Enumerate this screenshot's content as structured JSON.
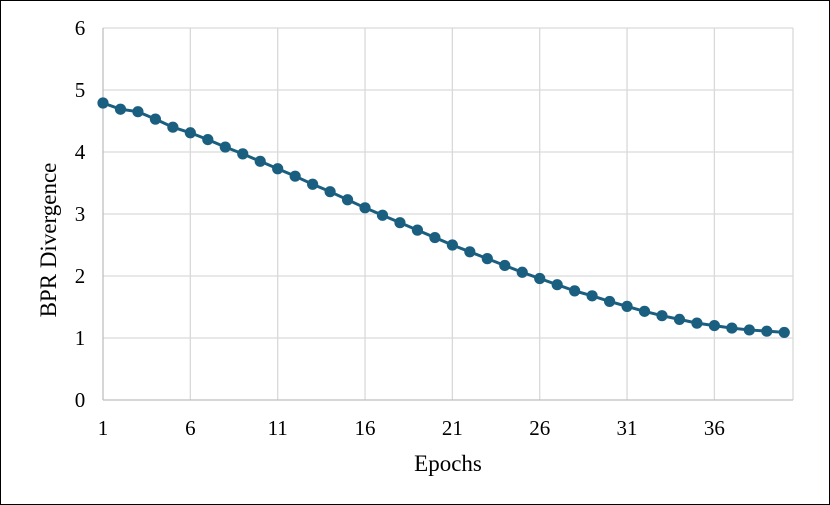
{
  "chart_data": {
    "type": "line",
    "title": "",
    "xlabel": "Epochs",
    "ylabel": "BPR Divergence",
    "x_ticks": [
      1,
      6,
      11,
      16,
      21,
      26,
      31,
      36
    ],
    "y_ticks": [
      0,
      1,
      2,
      3,
      4,
      5,
      6
    ],
    "xlim": [
      1,
      40.5
    ],
    "ylim": [
      0,
      6
    ],
    "grid": true,
    "legend": "none",
    "series": [
      {
        "color": "#1b5f80",
        "marker": "circle",
        "x": [
          1,
          2,
          3,
          4,
          5,
          6,
          7,
          8,
          9,
          10,
          11,
          12,
          13,
          14,
          15,
          16,
          17,
          18,
          19,
          20,
          21,
          22,
          23,
          24,
          25,
          26,
          27,
          28,
          29,
          30,
          31,
          32,
          33,
          34,
          35,
          36,
          37,
          38,
          39,
          40
        ],
        "y": [
          4.79,
          4.69,
          4.65,
          4.53,
          4.4,
          4.31,
          4.2,
          4.08,
          3.97,
          3.85,
          3.73,
          3.61,
          3.48,
          3.36,
          3.23,
          3.1,
          2.98,
          2.86,
          2.74,
          2.62,
          2.5,
          2.39,
          2.28,
          2.17,
          2.06,
          1.96,
          1.86,
          1.76,
          1.68,
          1.59,
          1.51,
          1.43,
          1.36,
          1.3,
          1.24,
          1.2,
          1.16,
          1.13,
          1.11,
          1.09
        ]
      }
    ]
  }
}
